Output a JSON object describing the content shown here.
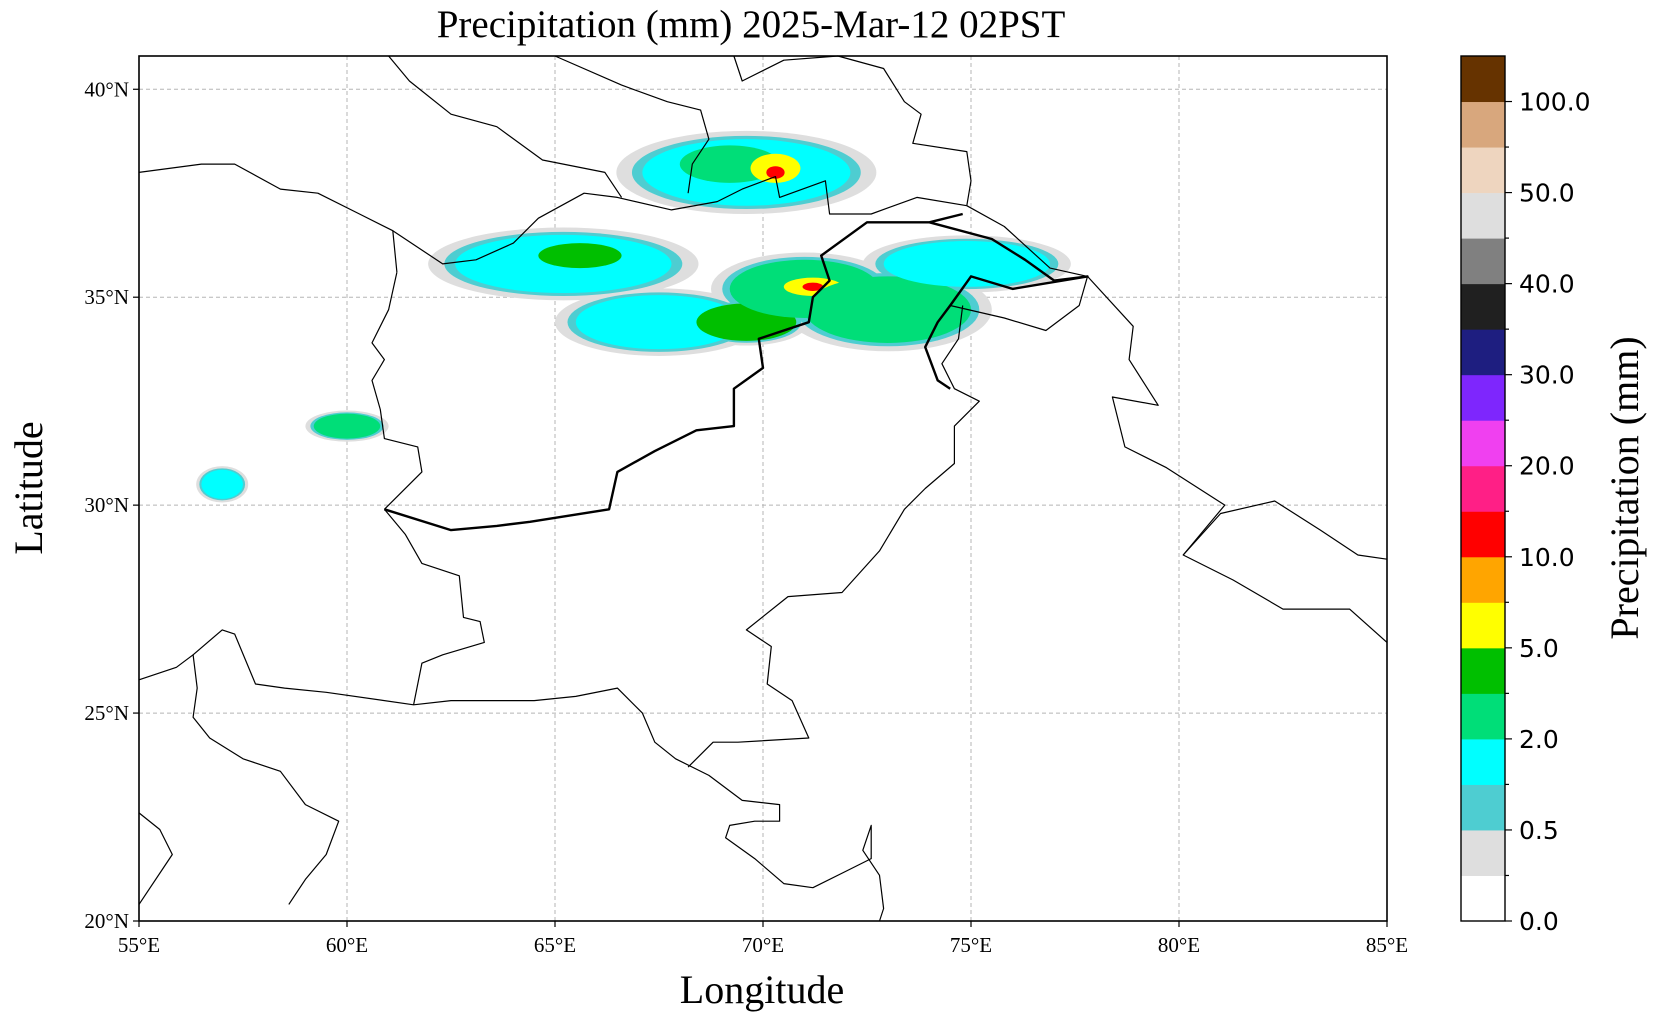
{
  "title": "Precipitation (mm)  2025-Mar-12 02PST",
  "xlabel": "Longitude",
  "ylabel": "Latitude",
  "colorbar": {
    "label": "Precipitation (mm)",
    "tick_labels": [
      "0.0",
      "0.5",
      "2.0",
      "5.0",
      "10.0",
      "20.0",
      "30.0",
      "40.0",
      "50.0",
      "100.0"
    ],
    "bins": [
      {
        "color": "#ffffff"
      },
      {
        "color": "#dedede"
      },
      {
        "color": "#4ecdd1"
      },
      {
        "color": "#00ffff"
      },
      {
        "color": "#00de78"
      },
      {
        "color": "#00bf00"
      },
      {
        "color": "#ffff00"
      },
      {
        "color": "#ffa500"
      },
      {
        "color": "#ff0000"
      },
      {
        "color": "#ff1f86"
      },
      {
        "color": "#f040f0"
      },
      {
        "color": "#7e26fd"
      },
      {
        "color": "#1e1e80"
      },
      {
        "color": "#202020"
      },
      {
        "color": "#808080"
      },
      {
        "color": "#dedede"
      },
      {
        "color": "#eed5bf"
      },
      {
        "color": "#d8a77d"
      },
      {
        "color": "#663300"
      }
    ]
  },
  "map_extent": {
    "lon": [
      55,
      85
    ],
    "lat": [
      20,
      40.8
    ]
  },
  "lon_ticks": [
    {
      "value": 55,
      "label": "55°E"
    },
    {
      "value": 60,
      "label": "60°E"
    },
    {
      "value": 65,
      "label": "65°E"
    },
    {
      "value": 70,
      "label": "70°E"
    },
    {
      "value": 75,
      "label": "75°E"
    },
    {
      "value": 80,
      "label": "80°E"
    },
    {
      "value": 85,
      "label": "85°E"
    }
  ],
  "lat_ticks": [
    {
      "value": 20,
      "label": "20°N"
    },
    {
      "value": 25,
      "label": "25°N"
    },
    {
      "value": 30,
      "label": "30°N"
    },
    {
      "value": 35,
      "label": "35°N"
    },
    {
      "value": 40,
      "label": "40°N"
    }
  ],
  "precip_cells": [
    {
      "region": "north-afghanistan-tajikistan",
      "lon": 69.6,
      "lat": 38.0,
      "rx": 2.5,
      "ry": 0.8,
      "level": 3
    },
    {
      "region": "north-afghanistan-tajikistan",
      "lon": 69.2,
      "lat": 38.2,
      "rx": 1.2,
      "ry": 0.45,
      "level": 4
    },
    {
      "region": "north-afghanistan-tajikistan",
      "lon": 70.3,
      "lat": 38.1,
      "rx": 0.6,
      "ry": 0.35,
      "level": 6
    },
    {
      "region": "north-afghanistan-tajikistan",
      "lon": 70.3,
      "lat": 38.0,
      "rx": 0.22,
      "ry": 0.15,
      "level": 8
    },
    {
      "region": "central-afghanistan",
      "lon": 65.2,
      "lat": 35.8,
      "rx": 2.6,
      "ry": 0.7,
      "level": 3
    },
    {
      "region": "central-afghanistan",
      "lon": 65.6,
      "lat": 36.0,
      "rx": 1.0,
      "ry": 0.3,
      "level": 5
    },
    {
      "region": "east-afghanistan",
      "lon": 67.5,
      "lat": 34.4,
      "rx": 2.0,
      "ry": 0.65,
      "level": 3
    },
    {
      "region": "east-afghanistan",
      "lon": 69.6,
      "lat": 34.4,
      "rx": 1.2,
      "ry": 0.45,
      "level": 5
    },
    {
      "region": "kunar-chitral",
      "lon": 71.0,
      "lat": 35.2,
      "rx": 1.8,
      "ry": 0.7,
      "level": 4
    },
    {
      "region": "kunar-chitral",
      "lon": 71.2,
      "lat": 35.25,
      "rx": 0.7,
      "ry": 0.22,
      "level": 6
    },
    {
      "region": "kunar-chitral",
      "lon": 71.2,
      "lat": 35.25,
      "rx": 0.25,
      "ry": 0.1,
      "level": 8
    },
    {
      "region": "gilgit-kashmir",
      "lon": 73.0,
      "lat": 34.7,
      "rx": 2.0,
      "ry": 0.8,
      "level": 4
    },
    {
      "region": "gilgit-kashmir",
      "lon": 74.9,
      "lat": 35.8,
      "rx": 2.0,
      "ry": 0.55,
      "level": 3
    },
    {
      "region": "west-afghanistan-iran",
      "lon": 60.0,
      "lat": 31.9,
      "rx": 0.8,
      "ry": 0.3,
      "level": 4
    },
    {
      "region": "south-iran",
      "lon": 57.0,
      "lat": 30.5,
      "rx": 0.5,
      "ry": 0.35,
      "level": 3
    }
  ]
}
